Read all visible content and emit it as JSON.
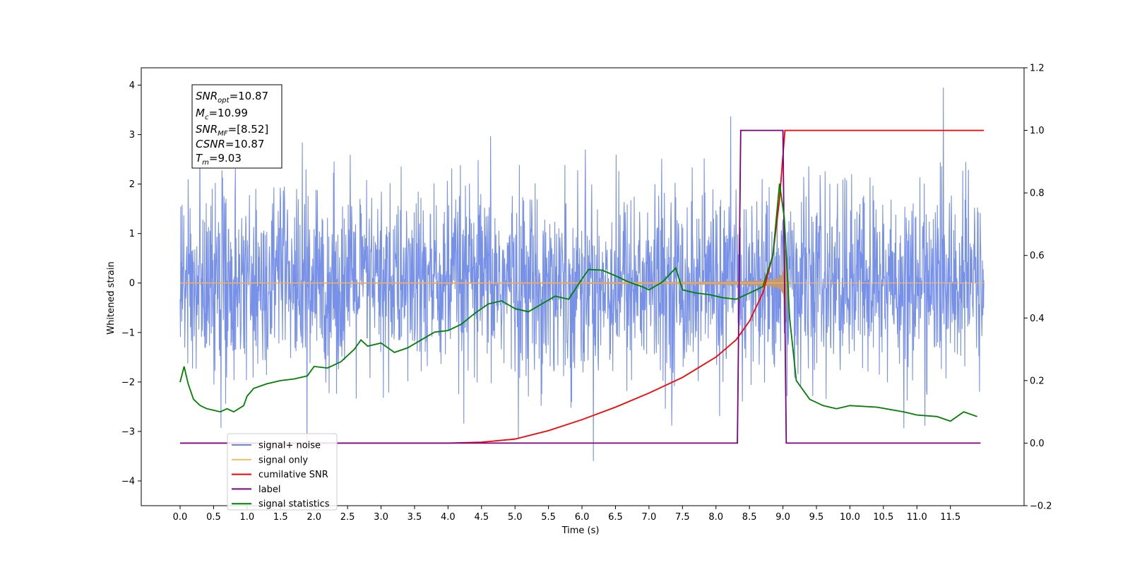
{
  "chart_data": {
    "type": "line",
    "xlabel": "Time (s)",
    "ylabel": "Whitened strain",
    "xlim": [
      -0.58,
      12.6
    ],
    "ylim": [
      -4.5,
      4.35
    ],
    "y2lim": [
      -0.2,
      1.2
    ],
    "x_ticks": [
      "0.0",
      "0.5",
      "1.0",
      "1.5",
      "2.0",
      "2.5",
      "3.0",
      "3.5",
      "4.0",
      "4.5",
      "5.0",
      "5.5",
      "6.0",
      "6.5",
      "7.0",
      "7.5",
      "8.0",
      "8.5",
      "9.0",
      "9.5",
      "10.0",
      "10.5",
      "11.0",
      "11.5"
    ],
    "y_ticks": [
      "4",
      "3",
      "2",
      "1",
      "0",
      "−1",
      "−2",
      "−3",
      "−4"
    ],
    "y2_ticks": [
      "1.2",
      "1.0",
      "0.8",
      "0.6",
      "0.4",
      "0.2",
      "0.0",
      "−0.2"
    ],
    "info_box": {
      "snr_opt": {
        "base": "SNR",
        "sub": "opt",
        "value": "=10.87"
      },
      "mc": {
        "base": "M",
        "sub": "c",
        "value": "=10.99"
      },
      "snr_mf": {
        "base": "SNR",
        "sub": "MF",
        "value": "=[8.52]"
      },
      "csnr": {
        "base": "CSNR",
        "sub": "",
        "value": "=10.87"
      },
      "tm": {
        "base": "T",
        "sub": "m",
        "value": "=9.03"
      }
    },
    "series": [
      {
        "name": "signal+ noise",
        "color": "#6b87e6",
        "axis": "left",
        "x_range": [
          0.0,
          12.0
        ],
        "std": 1.0
      },
      {
        "name": "signal only",
        "color": "#f5b96a",
        "axis": "left",
        "x_range": [
          0.0,
          12.0
        ],
        "merger_time": 9.03,
        "peak_amplitude": 1.9
      },
      {
        "name": "cumilative SNR",
        "color": "#ff0000",
        "axis": "right",
        "points": [
          [
            0.0,
            0.0
          ],
          [
            3.5,
            0.0
          ],
          [
            4.0,
            0.0
          ],
          [
            4.5,
            0.003
          ],
          [
            5.0,
            0.013
          ],
          [
            5.5,
            0.04
          ],
          [
            6.0,
            0.075
          ],
          [
            6.5,
            0.115
          ],
          [
            7.0,
            0.16
          ],
          [
            7.5,
            0.21
          ],
          [
            8.0,
            0.275
          ],
          [
            8.3,
            0.33
          ],
          [
            8.5,
            0.39
          ],
          [
            8.7,
            0.48
          ],
          [
            8.85,
            0.6
          ],
          [
            8.95,
            0.78
          ],
          [
            9.0,
            0.92
          ],
          [
            9.03,
            1.0
          ],
          [
            12.0,
            1.0
          ]
        ]
      },
      {
        "name": "label",
        "color": "#800080",
        "axis": "right",
        "points": [
          [
            0.0,
            0.0
          ],
          [
            8.32,
            0.0
          ],
          [
            8.37,
            1.0
          ],
          [
            9.0,
            1.0
          ],
          [
            9.05,
            0.0
          ],
          [
            11.95,
            0.0
          ]
        ]
      },
      {
        "name": "signal statistics",
        "color": "#008000",
        "axis": "right",
        "points": [
          [
            0.0,
            0.195
          ],
          [
            0.06,
            0.245
          ],
          [
            0.12,
            0.19
          ],
          [
            0.2,
            0.14
          ],
          [
            0.3,
            0.12
          ],
          [
            0.4,
            0.11
          ],
          [
            0.5,
            0.105
          ],
          [
            0.6,
            0.1
          ],
          [
            0.7,
            0.11
          ],
          [
            0.8,
            0.1
          ],
          [
            0.95,
            0.12
          ],
          [
            1.0,
            0.15
          ],
          [
            1.1,
            0.175
          ],
          [
            1.3,
            0.19
          ],
          [
            1.5,
            0.2
          ],
          [
            1.7,
            0.205
          ],
          [
            1.9,
            0.215
          ],
          [
            2.0,
            0.245
          ],
          [
            2.2,
            0.24
          ],
          [
            2.4,
            0.26
          ],
          [
            2.6,
            0.3
          ],
          [
            2.7,
            0.33
          ],
          [
            2.8,
            0.31
          ],
          [
            3.0,
            0.32
          ],
          [
            3.2,
            0.29
          ],
          [
            3.4,
            0.305
          ],
          [
            3.6,
            0.33
          ],
          [
            3.8,
            0.355
          ],
          [
            4.0,
            0.36
          ],
          [
            4.2,
            0.38
          ],
          [
            4.4,
            0.415
          ],
          [
            4.6,
            0.445
          ],
          [
            4.8,
            0.455
          ],
          [
            5.0,
            0.43
          ],
          [
            5.2,
            0.42
          ],
          [
            5.4,
            0.445
          ],
          [
            5.6,
            0.47
          ],
          [
            5.8,
            0.46
          ],
          [
            6.0,
            0.525
          ],
          [
            6.1,
            0.555
          ],
          [
            6.3,
            0.553
          ],
          [
            6.5,
            0.535
          ],
          [
            6.7,
            0.515
          ],
          [
            6.9,
            0.5
          ],
          [
            7.0,
            0.49
          ],
          [
            7.2,
            0.515
          ],
          [
            7.4,
            0.56
          ],
          [
            7.5,
            0.49
          ],
          [
            7.7,
            0.48
          ],
          [
            7.9,
            0.475
          ],
          [
            8.1,
            0.465
          ],
          [
            8.3,
            0.46
          ],
          [
            8.5,
            0.48
          ],
          [
            8.7,
            0.5
          ],
          [
            8.85,
            0.6
          ],
          [
            8.95,
            0.83
          ],
          [
            9.02,
            0.72
          ],
          [
            9.1,
            0.4
          ],
          [
            9.2,
            0.2
          ],
          [
            9.4,
            0.14
          ],
          [
            9.6,
            0.12
          ],
          [
            9.8,
            0.11
          ],
          [
            10.0,
            0.12
          ],
          [
            10.4,
            0.115
          ],
          [
            10.8,
            0.1
          ],
          [
            11.0,
            0.09
          ],
          [
            11.3,
            0.085
          ],
          [
            11.5,
            0.07
          ],
          [
            11.7,
            0.1
          ],
          [
            11.9,
            0.085
          ]
        ]
      }
    ],
    "legend_position": "lower-left",
    "grid": false
  }
}
